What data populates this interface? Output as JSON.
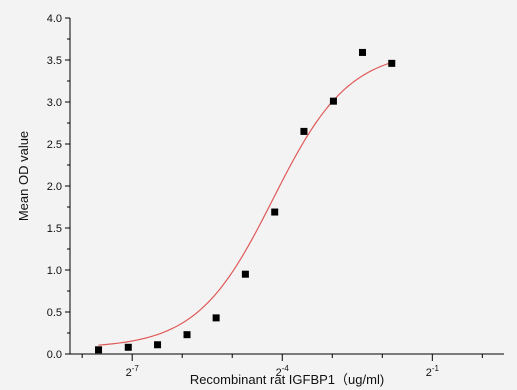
{
  "chart_data": {
    "type": "scatter",
    "title": "",
    "xlabel": "Recombinant rat IGFBP1（ug/ml)",
    "ylabel": "Mean OD value",
    "x_scale": "log2",
    "xlim": [
      0.0033,
      1.35
    ],
    "ylim": [
      0.0,
      4.0
    ],
    "y_ticks": [
      "0.0",
      "0.5",
      "1.0",
      "1.5",
      "2.0",
      "2.5",
      "3.0",
      "3.5",
      "4.0"
    ],
    "x_tick_labels": [
      {
        "value": 0.0078125,
        "base": "2",
        "exp": "-7"
      },
      {
        "value": 0.0625,
        "base": "2",
        "exp": "-4"
      },
      {
        "value": 0.5,
        "base": "2",
        "exp": "-1"
      }
    ],
    "x_minor_ticks": [
      0.00390625,
      0.015625,
      0.03125,
      0.125,
      0.25,
      1.0
    ],
    "marker_color": "#000000",
    "curve_color": "#e05a5a",
    "points": [
      {
        "x": 0.0049,
        "y": 0.05
      },
      {
        "x": 0.0074,
        "y": 0.08
      },
      {
        "x": 0.0111,
        "y": 0.11
      },
      {
        "x": 0.0167,
        "y": 0.23
      },
      {
        "x": 0.025,
        "y": 0.43
      },
      {
        "x": 0.0375,
        "y": 0.95
      },
      {
        "x": 0.0563,
        "y": 1.69
      },
      {
        "x": 0.0844,
        "y": 2.65
      },
      {
        "x": 0.127,
        "y": 3.01
      },
      {
        "x": 0.19,
        "y": 3.59
      },
      {
        "x": 0.285,
        "y": 3.46
      }
    ],
    "fit": {
      "type": "4PL",
      "bottom": 0.07,
      "top": 3.62,
      "ec50": 0.055,
      "hill": 1.9
    }
  }
}
